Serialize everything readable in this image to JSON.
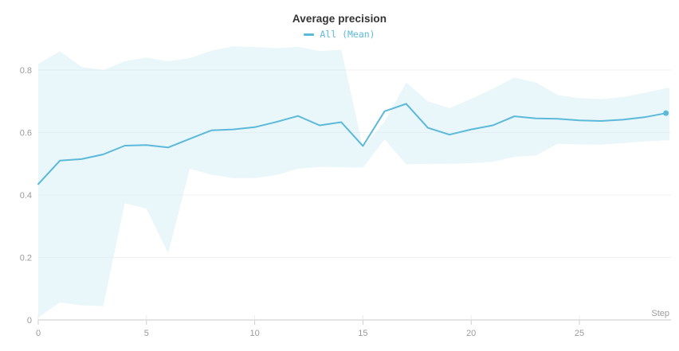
{
  "title": "Average precision",
  "legend": {
    "items": [
      {
        "label": "All (Mean)",
        "color": "#5bb9da",
        "swatch": "line-swatch"
      }
    ]
  },
  "axes": {
    "x": {
      "label": "Step",
      "ticks": [
        {
          "v": 0,
          "label": "0"
        },
        {
          "v": 5,
          "label": "5"
        },
        {
          "v": 10,
          "label": "10"
        },
        {
          "v": 15,
          "label": "15"
        },
        {
          "v": 20,
          "label": "20"
        },
        {
          "v": 25,
          "label": "25"
        }
      ]
    },
    "y": {
      "ticks": [
        {
          "v": 0,
          "label": "0"
        },
        {
          "v": 0.2,
          "label": "0.2"
        },
        {
          "v": 0.4,
          "label": "0.4"
        },
        {
          "v": 0.6,
          "label": "0.6"
        },
        {
          "v": 0.8,
          "label": "0.8"
        }
      ]
    }
  },
  "colors": {
    "line": "#5bb9da",
    "band": "#d7eef5",
    "grid": "#f0f0f0",
    "axis": "#dcdcdc",
    "tick": "#cccccc",
    "tick_label": "#9b9b9b",
    "title": "#333333"
  },
  "chart_data": {
    "type": "line",
    "title": "Average precision",
    "xlabel": "Step",
    "ylabel": "",
    "xlim": [
      0,
      29.2
    ],
    "ylim": [
      0,
      0.88
    ],
    "grid": "horizontal",
    "legend_position": "top-center",
    "x": [
      0,
      1,
      2,
      3,
      4,
      5,
      6,
      7,
      8,
      9,
      10,
      11,
      12,
      13,
      14,
      15,
      16,
      17,
      18,
      19,
      20,
      21,
      22,
      23,
      24,
      25,
      26,
      27,
      28,
      29
    ],
    "series": [
      {
        "name": "All (Mean)",
        "role": "mean",
        "color": "#5bb9da",
        "values": [
          0.435,
          0.51,
          0.515,
          0.53,
          0.558,
          0.56,
          0.552,
          0.58,
          0.607,
          0.61,
          0.617,
          0.634,
          0.653,
          0.623,
          0.633,
          0.557,
          0.668,
          0.692,
          0.615,
          0.593,
          0.61,
          0.623,
          0.652,
          0.645,
          0.644,
          0.639,
          0.637,
          0.641,
          0.649,
          0.662
        ]
      },
      {
        "name": "All (Max)",
        "role": "band-upper",
        "color": "#d7eef5",
        "values": [
          0.82,
          0.86,
          0.81,
          0.8,
          0.828,
          0.84,
          0.828,
          0.838,
          0.862,
          0.876,
          0.873,
          0.87,
          0.874,
          0.861,
          0.865,
          0.553,
          0.635,
          0.76,
          0.7,
          0.678,
          0.708,
          0.74,
          0.776,
          0.76,
          0.72,
          0.71,
          0.707,
          0.713,
          0.727,
          0.742
        ]
      },
      {
        "name": "All (Min)",
        "role": "band-lower",
        "color": "#d7eef5",
        "values": [
          0.008,
          0.056,
          0.047,
          0.044,
          0.374,
          0.356,
          0.213,
          0.484,
          0.465,
          0.454,
          0.454,
          0.464,
          0.484,
          0.49,
          0.489,
          0.488,
          0.578,
          0.498,
          0.5,
          0.5,
          0.502,
          0.506,
          0.522,
          0.527,
          0.564,
          0.562,
          0.561,
          0.566,
          0.571,
          0.575
        ]
      }
    ],
    "end_marker": {
      "x": 29,
      "value": 0.662
    }
  }
}
